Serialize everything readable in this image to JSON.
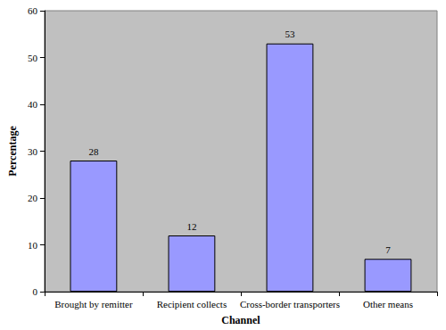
{
  "chart_data": {
    "type": "bar",
    "x_label": "Channel",
    "y_label": "Percentage",
    "categories": [
      "Brought by remitter",
      "Recipient collects",
      "Cross-border transporters",
      "Other means"
    ],
    "values": [
      28,
      12,
      53,
      7
    ],
    "color": "#9999ff",
    "ylim": [
      0,
      60
    ],
    "yticks": [
      0,
      10,
      20,
      30,
      40,
      50,
      60
    ],
    "grid": false,
    "data_labels": true
  }
}
